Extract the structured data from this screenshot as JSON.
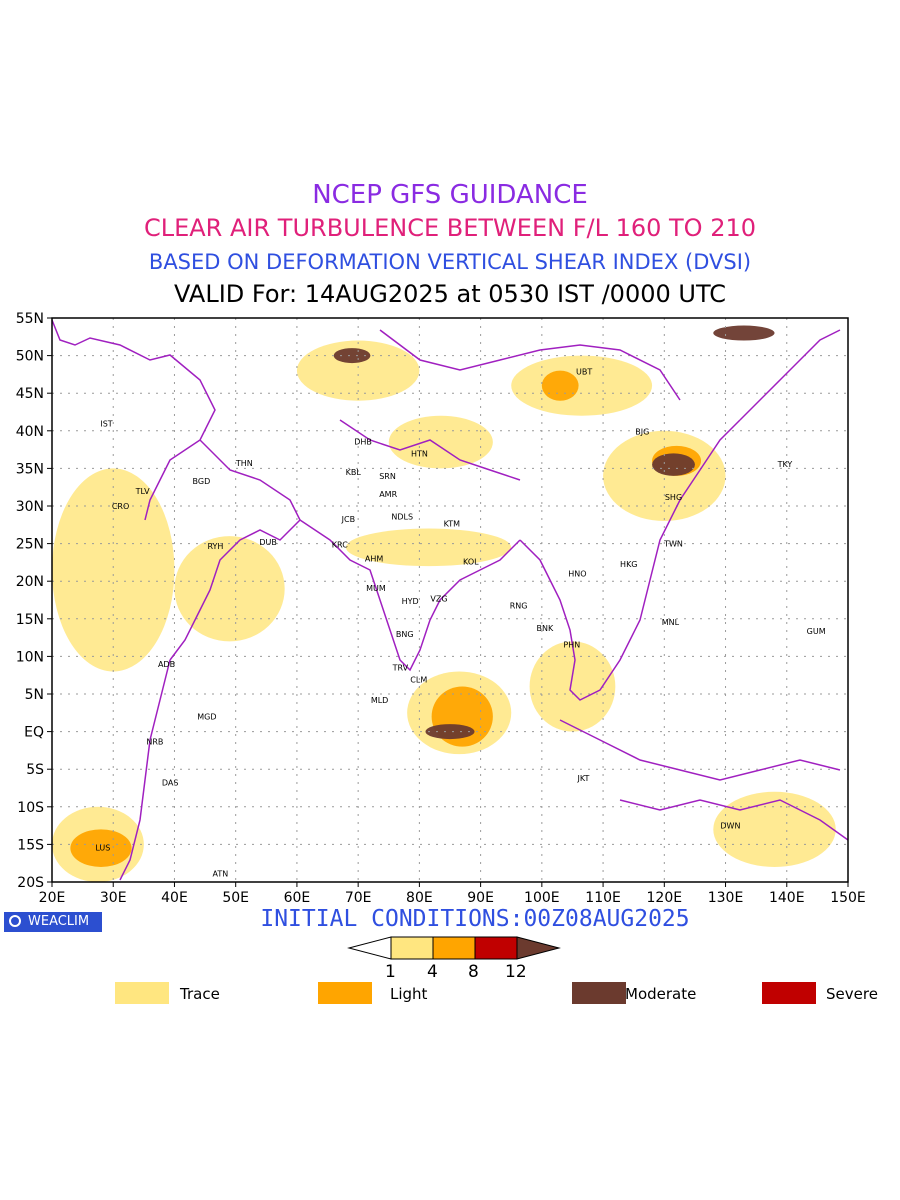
{
  "header": {
    "line1": "NCEP GFS GUIDANCE",
    "line2": "CLEAR AIR TURBULENCE BETWEEN F/L 160 TO 210",
    "line3": "BASED ON DEFORMATION VERTICAL SHEAR INDEX (DVSI)",
    "line4": "VALID For: 14AUG2025 at 0530 IST /0000 UTC",
    "colors": {
      "line1": "#8a2be2",
      "line2": "#e0207a",
      "line3": "#2f4fe0",
      "line4": "#000000"
    }
  },
  "map": {
    "lon_range": [
      20,
      150
    ],
    "lat_range": [
      -20,
      55
    ],
    "lon_ticks": [
      "20E",
      "30E",
      "40E",
      "50E",
      "60E",
      "70E",
      "80E",
      "90E",
      "100E",
      "110E",
      "120E",
      "130E",
      "140E",
      "150E"
    ],
    "lat_ticks": [
      "55N",
      "50N",
      "45N",
      "40N",
      "35N",
      "30N",
      "25N",
      "20N",
      "15N",
      "10N",
      "5N",
      "EQ",
      "5S",
      "10S",
      "15S",
      "20S"
    ],
    "boundary_color": "#a020c0",
    "cities": [
      {
        "code": "UBT",
        "lon": 106.9,
        "lat": 47.9
      },
      {
        "code": "IST",
        "lon": 28.9,
        "lat": 41.0
      },
      {
        "code": "BJG",
        "lon": 116.4,
        "lat": 39.9
      },
      {
        "code": "DHB",
        "lon": 70.8,
        "lat": 38.6
      },
      {
        "code": "HTN",
        "lon": 80.0,
        "lat": 37.0
      },
      {
        "code": "TKY",
        "lon": 139.7,
        "lat": 35.6
      },
      {
        "code": "THN",
        "lon": 51.4,
        "lat": 35.7
      },
      {
        "code": "KBL",
        "lon": 69.2,
        "lat": 34.5
      },
      {
        "code": "SRN",
        "lon": 74.8,
        "lat": 34.0
      },
      {
        "code": "TLV",
        "lon": 34.8,
        "lat": 32.0
      },
      {
        "code": "BGD",
        "lon": 44.4,
        "lat": 33.3
      },
      {
        "code": "AMR",
        "lon": 74.9,
        "lat": 31.6
      },
      {
        "code": "SHG",
        "lon": 121.5,
        "lat": 31.2
      },
      {
        "code": "CRO",
        "lon": 31.2,
        "lat": 30.0
      },
      {
        "code": "JCB",
        "lon": 68.4,
        "lat": 28.3
      },
      {
        "code": "NDLS",
        "lon": 77.2,
        "lat": 28.6
      },
      {
        "code": "KTM",
        "lon": 85.3,
        "lat": 27.7
      },
      {
        "code": "RYH",
        "lon": 46.7,
        "lat": 24.7
      },
      {
        "code": "DUB",
        "lon": 55.3,
        "lat": 25.2
      },
      {
        "code": "KRC",
        "lon": 67.0,
        "lat": 24.9
      },
      {
        "code": "TWN",
        "lon": 121.5,
        "lat": 25.0
      },
      {
        "code": "AHM",
        "lon": 72.6,
        "lat": 23.0
      },
      {
        "code": "KOL",
        "lon": 88.4,
        "lat": 22.6
      },
      {
        "code": "HNO",
        "lon": 105.8,
        "lat": 21.0
      },
      {
        "code": "HKG",
        "lon": 114.2,
        "lat": 22.3
      },
      {
        "code": "MUM",
        "lon": 72.9,
        "lat": 19.1
      },
      {
        "code": "HYD",
        "lon": 78.5,
        "lat": 17.4
      },
      {
        "code": "VZG",
        "lon": 83.2,
        "lat": 17.7
      },
      {
        "code": "RNG",
        "lon": 96.2,
        "lat": 16.8
      },
      {
        "code": "MNL",
        "lon": 121.0,
        "lat": 14.6
      },
      {
        "code": "BNK",
        "lon": 100.5,
        "lat": 13.8
      },
      {
        "code": "GUM",
        "lon": 144.8,
        "lat": 13.4
      },
      {
        "code": "BNG",
        "lon": 77.6,
        "lat": 13.0
      },
      {
        "code": "PHN",
        "lon": 104.9,
        "lat": 11.6
      },
      {
        "code": "ADB",
        "lon": 38.7,
        "lat": 9.0
      },
      {
        "code": "TRV",
        "lon": 76.9,
        "lat": 8.5
      },
      {
        "code": "CLM",
        "lon": 79.9,
        "lat": 6.9
      },
      {
        "code": "MLD",
        "lon": 73.5,
        "lat": 4.2
      },
      {
        "code": "MGD",
        "lon": 45.3,
        "lat": 2.0
      },
      {
        "code": "NRB",
        "lon": 36.8,
        "lat": -1.3
      },
      {
        "code": "DAS",
        "lon": 39.3,
        "lat": -6.8
      },
      {
        "code": "JKT",
        "lon": 106.8,
        "lat": -6.2
      },
      {
        "code": "DWN",
        "lon": 130.8,
        "lat": -12.5
      },
      {
        "code": "LUS",
        "lon": 28.3,
        "lat": -15.4
      },
      {
        "code": "ATN",
        "lon": 47.5,
        "lat": -18.9
      }
    ],
    "turbulence_areas": [
      {
        "level": "trace",
        "lon": [
          68,
          95
        ],
        "lat": [
          22,
          27
        ]
      },
      {
        "level": "trace",
        "lon": [
          75,
          92
        ],
        "lat": [
          35,
          42
        ]
      },
      {
        "level": "trace",
        "lon": [
          95,
          118
        ],
        "lat": [
          42,
          50
        ]
      },
      {
        "level": "trace",
        "lon": [
          60,
          80
        ],
        "lat": [
          44,
          52
        ]
      },
      {
        "level": "trace",
        "lon": [
          78,
          95
        ],
        "lat": [
          -3,
          8
        ]
      },
      {
        "level": "trace",
        "lon": [
          40,
          58
        ],
        "lat": [
          12,
          26
        ]
      },
      {
        "level": "trace",
        "lon": [
          20,
          35
        ],
        "lat": [
          -20,
          -10
        ]
      },
      {
        "level": "trace",
        "lon": [
          128,
          148
        ],
        "lat": [
          -18,
          -8
        ]
      },
      {
        "level": "trace",
        "lon": [
          110,
          130
        ],
        "lat": [
          28,
          40
        ]
      },
      {
        "level": "trace",
        "lon": [
          20,
          40
        ],
        "lat": [
          8,
          35
        ]
      },
      {
        "level": "trace",
        "lon": [
          98,
          112
        ],
        "lat": [
          0,
          12
        ]
      },
      {
        "level": "light",
        "lon": [
          82,
          92
        ],
        "lat": [
          -2,
          6
        ]
      },
      {
        "level": "light",
        "lon": [
          100,
          106
        ],
        "lat": [
          44,
          48
        ]
      },
      {
        "level": "light",
        "lon": [
          118,
          126
        ],
        "lat": [
          34,
          38
        ]
      },
      {
        "level": "light",
        "lon": [
          23,
          33
        ],
        "lat": [
          -18,
          -13
        ]
      },
      {
        "level": "moderate",
        "lon": [
          81,
          89
        ],
        "lat": [
          -1,
          1
        ]
      },
      {
        "level": "moderate",
        "lon": [
          128,
          138
        ],
        "lat": [
          52,
          54
        ]
      },
      {
        "level": "moderate",
        "lon": [
          118,
          125
        ],
        "lat": [
          34,
          37
        ]
      },
      {
        "level": "moderate",
        "lon": [
          66,
          72
        ],
        "lat": [
          49,
          51
        ]
      }
    ]
  },
  "footer": {
    "badge": "WEACLIM",
    "initial_conditions": "INITIAL CONDITIONS:00Z08AUG2025",
    "scale_ticks": [
      "1",
      "4",
      "8",
      "12"
    ],
    "legend": [
      {
        "label": "Trace",
        "color": "#ffe680"
      },
      {
        "label": "Light",
        "color": "#ffa500"
      },
      {
        "label": "Moderate",
        "color": "#6b3a2e"
      },
      {
        "label": "Severe",
        "color": "#c00000"
      }
    ],
    "scale_colors": [
      "#ffffff",
      "#ffe680",
      "#ffa500",
      "#c00000",
      "#6b3a2e"
    ]
  }
}
